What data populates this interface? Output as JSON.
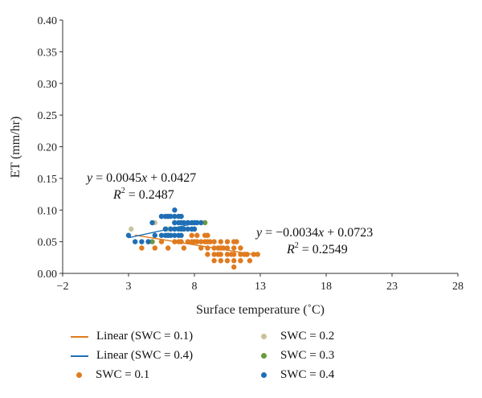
{
  "chart_data": {
    "type": "scatter",
    "xlabel": "Surface temperature (˚C)",
    "ylabel": "ET (mm/hr)",
    "xlim": [
      -2,
      28
    ],
    "ylim": [
      0,
      0.4
    ],
    "x_ticks": [
      "−2",
      "3",
      "8",
      "13",
      "18",
      "23",
      "28"
    ],
    "y_ticks": [
      "0.00",
      "0.05",
      "0.10",
      "0.15",
      "0.20",
      "0.25",
      "0.30",
      "0.35",
      "0.40"
    ],
    "grid": false,
    "legend_position": "bottom",
    "series": [
      {
        "name": "SWC = 0.1",
        "color": "#e07b1f",
        "points": [
          [
            4.0,
            0.04
          ],
          [
            4.5,
            0.05
          ],
          [
            5.0,
            0.04
          ],
          [
            5.5,
            0.05
          ],
          [
            6.0,
            0.04
          ],
          [
            6.5,
            0.05
          ],
          [
            6.8,
            0.05
          ],
          [
            7.0,
            0.05
          ],
          [
            7.2,
            0.04
          ],
          [
            7.5,
            0.05
          ],
          [
            7.8,
            0.05
          ],
          [
            8.0,
            0.05
          ],
          [
            7.8,
            0.06
          ],
          [
            8.2,
            0.05
          ],
          [
            8.2,
            0.06
          ],
          [
            8.5,
            0.04
          ],
          [
            8.5,
            0.05
          ],
          [
            8.8,
            0.05
          ],
          [
            8.8,
            0.06
          ],
          [
            9.0,
            0.03
          ],
          [
            9.0,
            0.04
          ],
          [
            9.0,
            0.05
          ],
          [
            9.2,
            0.05
          ],
          [
            9.5,
            0.02
          ],
          [
            9.5,
            0.03
          ],
          [
            9.5,
            0.04
          ],
          [
            9.5,
            0.05
          ],
          [
            9.8,
            0.03
          ],
          [
            9.8,
            0.04
          ],
          [
            10.0,
            0.02
          ],
          [
            10.0,
            0.03
          ],
          [
            10.0,
            0.04
          ],
          [
            10.0,
            0.05
          ],
          [
            10.2,
            0.04
          ],
          [
            10.5,
            0.02
          ],
          [
            10.5,
            0.03
          ],
          [
            10.5,
            0.04
          ],
          [
            10.8,
            0.03
          ],
          [
            11.0,
            0.01
          ],
          [
            11.0,
            0.02
          ],
          [
            11.0,
            0.03
          ],
          [
            11.0,
            0.04
          ],
          [
            11.2,
            0.05
          ],
          [
            11.5,
            0.02
          ],
          [
            11.5,
            0.03
          ],
          [
            11.5,
            0.04
          ],
          [
            11.8,
            0.03
          ],
          [
            12.0,
            0.03
          ],
          [
            12.2,
            0.02
          ],
          [
            12.5,
            0.03
          ],
          [
            12.8,
            0.03
          ],
          [
            11.0,
            0.05
          ],
          [
            10.5,
            0.05
          ],
          [
            9.0,
            0.06
          ]
        ]
      },
      {
        "name": "SWC = 0.2",
        "color": "#c9c39a",
        "points": [
          [
            3.2,
            0.07
          ],
          [
            5.0,
            0.08
          ],
          [
            5.5,
            0.09
          ],
          [
            6.0,
            0.09
          ],
          [
            6.5,
            0.09
          ],
          [
            7.0,
            0.09
          ],
          [
            7.5,
            0.08
          ],
          [
            8.0,
            0.08
          ],
          [
            8.5,
            0.08
          ],
          [
            6.0,
            0.07
          ],
          [
            7.0,
            0.07
          ],
          [
            8.0,
            0.07
          ]
        ]
      },
      {
        "name": "SWC = 0.3",
        "color": "#6b9a3c",
        "points": [
          [
            4.8,
            0.05
          ],
          [
            6.0,
            0.06
          ],
          [
            6.5,
            0.08
          ],
          [
            7.5,
            0.08
          ],
          [
            8.8,
            0.08
          ],
          [
            5.8,
            0.07
          ]
        ]
      },
      {
        "name": "SWC = 0.4",
        "color": "#1f6fb5",
        "points": [
          [
            3.0,
            0.06
          ],
          [
            3.5,
            0.05
          ],
          [
            4.0,
            0.05
          ],
          [
            4.5,
            0.05
          ],
          [
            5.0,
            0.06
          ],
          [
            5.5,
            0.06
          ],
          [
            5.8,
            0.06
          ],
          [
            6.0,
            0.06
          ],
          [
            6.2,
            0.06
          ],
          [
            6.5,
            0.06
          ],
          [
            6.8,
            0.06
          ],
          [
            7.0,
            0.06
          ],
          [
            5.8,
            0.07
          ],
          [
            6.2,
            0.07
          ],
          [
            6.5,
            0.07
          ],
          [
            6.8,
            0.07
          ],
          [
            7.0,
            0.07
          ],
          [
            7.2,
            0.07
          ],
          [
            7.5,
            0.07
          ],
          [
            7.8,
            0.07
          ],
          [
            8.0,
            0.07
          ],
          [
            4.8,
            0.08
          ],
          [
            6.5,
            0.08
          ],
          [
            6.8,
            0.08
          ],
          [
            7.0,
            0.08
          ],
          [
            7.2,
            0.08
          ],
          [
            7.5,
            0.08
          ],
          [
            7.8,
            0.08
          ],
          [
            8.0,
            0.08
          ],
          [
            8.2,
            0.08
          ],
          [
            8.5,
            0.08
          ],
          [
            5.5,
            0.09
          ],
          [
            5.8,
            0.09
          ],
          [
            6.0,
            0.09
          ],
          [
            6.2,
            0.09
          ],
          [
            6.5,
            0.09
          ],
          [
            6.8,
            0.09
          ],
          [
            7.0,
            0.09
          ],
          [
            6.5,
            0.1
          ]
        ]
      }
    ],
    "trendlines": [
      {
        "name": "Linear (SWC = 0.1)",
        "color": "#e07b1f",
        "slope": -0.0034,
        "intercept": 0.0723,
        "x_range": [
          3.5,
          12.8
        ],
        "equation": "y = −0.0034x + 0.0723",
        "r2_label": "R2 = 0.2549"
      },
      {
        "name": "Linear (SWC = 0.4)",
        "color": "#1f6fb5",
        "slope": 0.0045,
        "intercept": 0.0427,
        "x_range": [
          3.0,
          8.5
        ],
        "equation": "y = 0.0045x + 0.0427",
        "r2_label": "R2 = 0.2487"
      }
    ]
  },
  "equations": {
    "swc04": {
      "lhs": "y",
      "rhs": " = 0.0045",
      "x": "x",
      "tail": " + 0.0427",
      "r": "R",
      "sup": "2",
      "r2": " = 0.2487"
    },
    "swc01": {
      "lhs": "y",
      "rhs": " = −0.0034",
      "x": "x",
      "tail": " + 0.0723",
      "r": "R",
      "sup": "2",
      "r2": " = 0.2549"
    }
  },
  "legend": {
    "items": [
      {
        "label": "Linear (SWC = 0.1)",
        "kind": "line",
        "color": "#e07b1f"
      },
      {
        "label": "SWC = 0.2",
        "kind": "dot",
        "color": "#c9c39a"
      },
      {
        "label": "Linear (SWC = 0.4)",
        "kind": "line",
        "color": "#1f6fb5"
      },
      {
        "label": "SWC = 0.3",
        "kind": "dot",
        "color": "#6b9a3c"
      },
      {
        "label": "SWC = 0.1",
        "kind": "dot",
        "color": "#e07b1f"
      },
      {
        "label": "SWC = 0.4",
        "kind": "dot",
        "color": "#1f6fb5"
      }
    ]
  }
}
